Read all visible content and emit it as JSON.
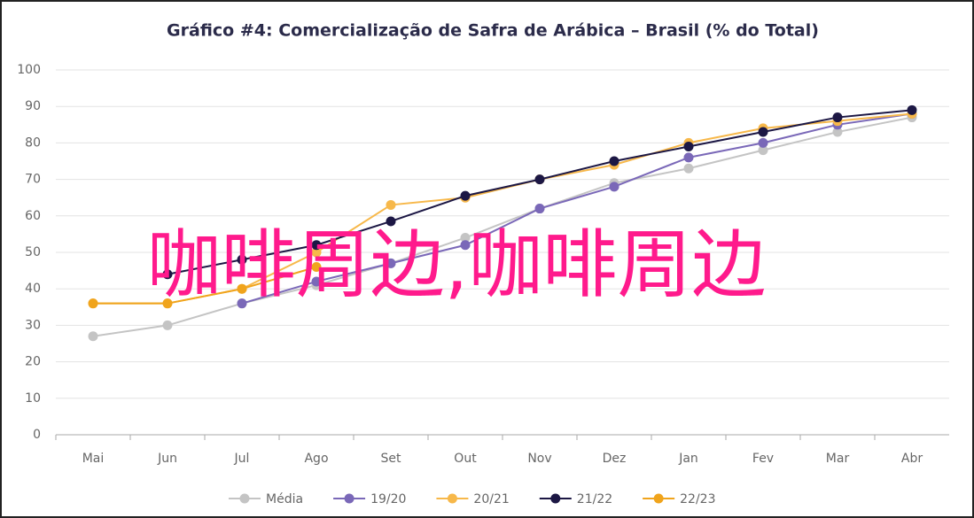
{
  "chart_data": {
    "type": "line",
    "title": "Gráfico #4: Comercialização de Safra de Arábica – Brasil (% do Total)",
    "categories": [
      "Mai",
      "Jun",
      "Jul",
      "Ago",
      "Set",
      "Out",
      "Nov",
      "Dez",
      "Jan",
      "Fev",
      "Mar",
      "Abr"
    ],
    "series": [
      {
        "name": "Média",
        "color": "#c4c4c4",
        "values": [
          27,
          30,
          36,
          41,
          47,
          54,
          62,
          69,
          73,
          78,
          83,
          87
        ]
      },
      {
        "name": "19/20",
        "color": "#7a68b8",
        "values": [
          null,
          null,
          36,
          42,
          47,
          52,
          62,
          68,
          76,
          80,
          85,
          88
        ]
      },
      {
        "name": "20/21",
        "color": "#f7b84a",
        "values": [
          36,
          36,
          40,
          50,
          63,
          65,
          70,
          74,
          80,
          84,
          86,
          88
        ]
      },
      {
        "name": "21/22",
        "color": "#1c1744",
        "values": [
          null,
          44,
          48,
          52,
          58.5,
          65.5,
          70,
          75,
          79,
          83,
          87,
          89
        ]
      },
      {
        "name": "22/23",
        "color": "#f0a41c",
        "values": [
          36,
          36,
          40,
          46,
          null,
          null,
          null,
          null,
          null,
          null,
          null,
          null
        ]
      }
    ],
    "ylim": [
      0,
      100
    ],
    "yticks": [
      0,
      10,
      20,
      30,
      40,
      50,
      60,
      70,
      80,
      90,
      100
    ],
    "grid": true,
    "legend": "bottom",
    "watermark": "咖啡周边,咖啡周边"
  }
}
